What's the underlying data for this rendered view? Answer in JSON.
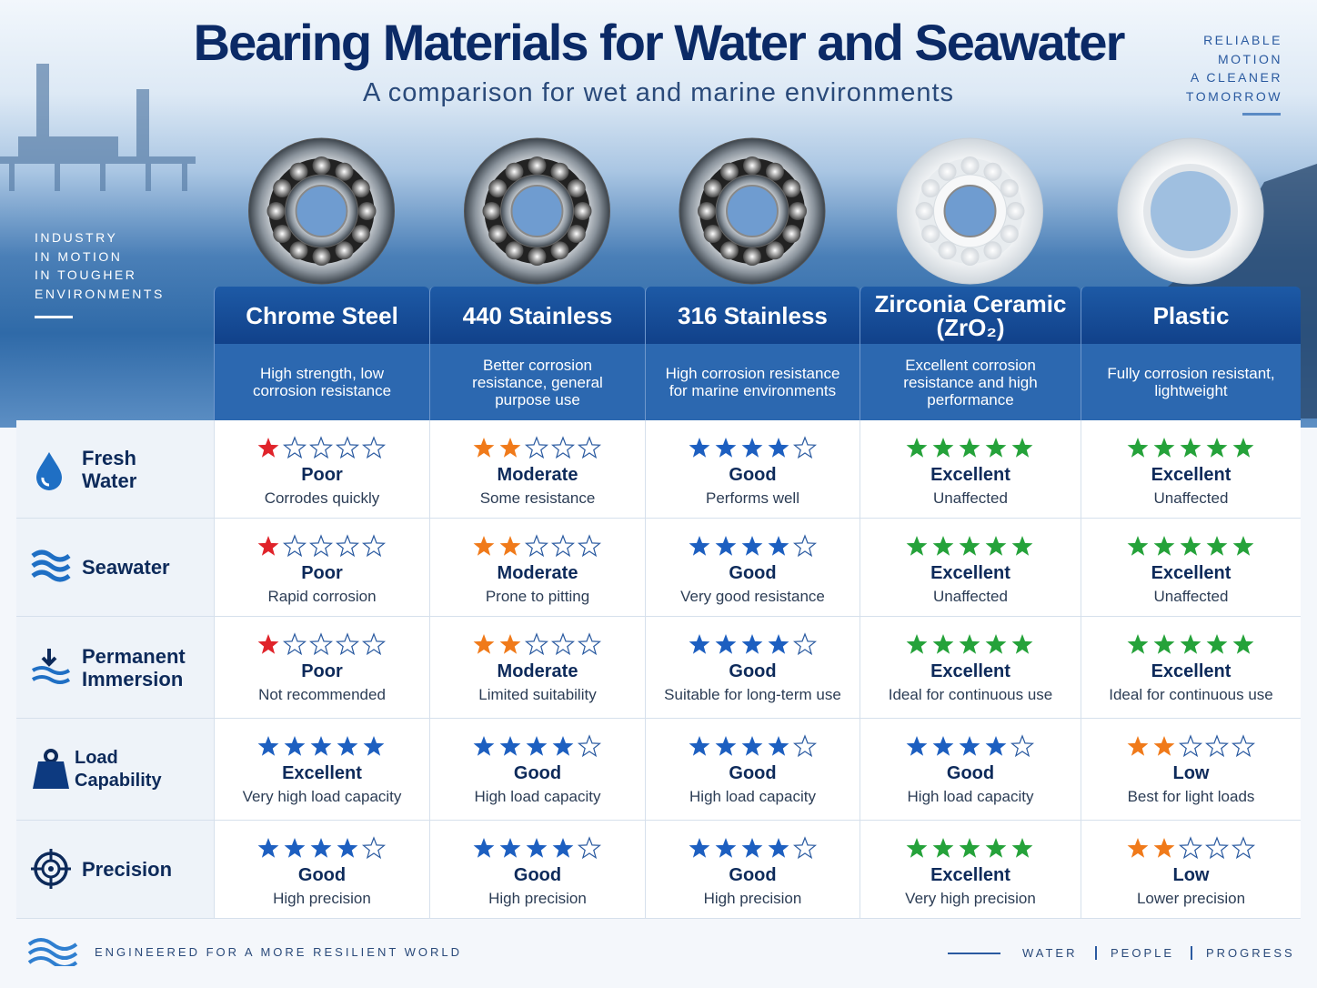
{
  "header": {
    "title": "Bearing Materials for Water and Seawater",
    "subtitle": "A comparison for wet and marine environments"
  },
  "taglines": {
    "right": [
      "RELIABLE",
      "MOTION",
      "A CLEANER",
      "TOMORROW"
    ],
    "left": [
      "INDUSTRY",
      "IN MOTION",
      "IN TOUGHER",
      "ENVIRONMENTS"
    ]
  },
  "table": {
    "columns": [
      {
        "name": "Chrome Steel",
        "description": "High strength, low corrosion resistance",
        "material": "steel"
      },
      {
        "name": "440 Stainless",
        "description": "Better corrosion resistance, general purpose use",
        "material": "steel"
      },
      {
        "name": "316 Stainless",
        "description": "High corrosion resistance for marine environments",
        "material": "steel"
      },
      {
        "name": "Zirconia Ceramic (ZrO₂)",
        "description": "Excellent corrosion resistance and high performance",
        "material": "ceramic"
      },
      {
        "name": "Plastic",
        "description": "Fully corrosion resistant, lightweight",
        "material": "plastic"
      }
    ],
    "rows": [
      {
        "label": "Fresh Water",
        "cells": [
          {
            "rating": 1,
            "color": "#e0232a",
            "grade": "Poor",
            "note": "Corrodes quickly"
          },
          {
            "rating": 2,
            "color": "#f07a1a",
            "grade": "Moderate",
            "note": "Some resistance"
          },
          {
            "rating": 4,
            "color": "#1d5fc0",
            "grade": "Good",
            "note": "Performs well"
          },
          {
            "rating": 5,
            "color": "#25a23a",
            "grade": "Excellent",
            "note": "Unaffected"
          },
          {
            "rating": 5,
            "color": "#25a23a",
            "grade": "Excellent",
            "note": "Unaffected"
          }
        ]
      },
      {
        "label": "Seawater",
        "cells": [
          {
            "rating": 1,
            "color": "#e0232a",
            "grade": "Poor",
            "note": "Rapid corrosion"
          },
          {
            "rating": 2,
            "color": "#f07a1a",
            "grade": "Moderate",
            "note": "Prone to pitting"
          },
          {
            "rating": 4,
            "color": "#1d5fc0",
            "grade": "Good",
            "note": "Very good resistance"
          },
          {
            "rating": 5,
            "color": "#25a23a",
            "grade": "Excellent",
            "note": "Unaffected"
          },
          {
            "rating": 5,
            "color": "#25a23a",
            "grade": "Excellent",
            "note": "Unaffected"
          }
        ]
      },
      {
        "label": "Permanent Immersion",
        "cells": [
          {
            "rating": 1,
            "color": "#e0232a",
            "grade": "Poor",
            "note": "Not recommended"
          },
          {
            "rating": 2,
            "color": "#f07a1a",
            "grade": "Moderate",
            "note": "Limited suitability"
          },
          {
            "rating": 4,
            "color": "#1d5fc0",
            "grade": "Good",
            "note": "Suitable for long-term use"
          },
          {
            "rating": 5,
            "color": "#25a23a",
            "grade": "Excellent",
            "note": "Ideal for continuous use"
          },
          {
            "rating": 5,
            "color": "#25a23a",
            "grade": "Excellent",
            "note": "Ideal for continuous use"
          }
        ]
      },
      {
        "label": "Load Capability",
        "cells": [
          {
            "rating": 5,
            "color": "#1d5fc0",
            "grade": "Excellent",
            "note": "Very high load capacity"
          },
          {
            "rating": 4,
            "color": "#1d5fc0",
            "grade": "Good",
            "note": "High load capacity"
          },
          {
            "rating": 4,
            "color": "#1d5fc0",
            "grade": "Good",
            "note": "High load capacity"
          },
          {
            "rating": 4,
            "color": "#1d5fc0",
            "grade": "Good",
            "note": "High load capacity"
          },
          {
            "rating": 2,
            "color": "#f07a1a",
            "grade": "Low",
            "note": "Best for light loads"
          }
        ]
      },
      {
        "label": "Precision",
        "cells": [
          {
            "rating": 4,
            "color": "#1d5fc0",
            "grade": "Good",
            "note": "High precision"
          },
          {
            "rating": 4,
            "color": "#1d5fc0",
            "grade": "Good",
            "note": "High precision"
          },
          {
            "rating": 4,
            "color": "#1d5fc0",
            "grade": "Good",
            "note": "High precision"
          },
          {
            "rating": 5,
            "color": "#25a23a",
            "grade": "Excellent",
            "note": "Very high precision"
          },
          {
            "rating": 2,
            "color": "#f07a1a",
            "grade": "Low",
            "note": "Lower precision"
          }
        ]
      }
    ]
  },
  "footer": {
    "slogan": "ENGINEERED FOR A MORE RESILIENT WORLD",
    "links": [
      "WATER",
      "PEOPLE",
      "PROGRESS"
    ]
  }
}
